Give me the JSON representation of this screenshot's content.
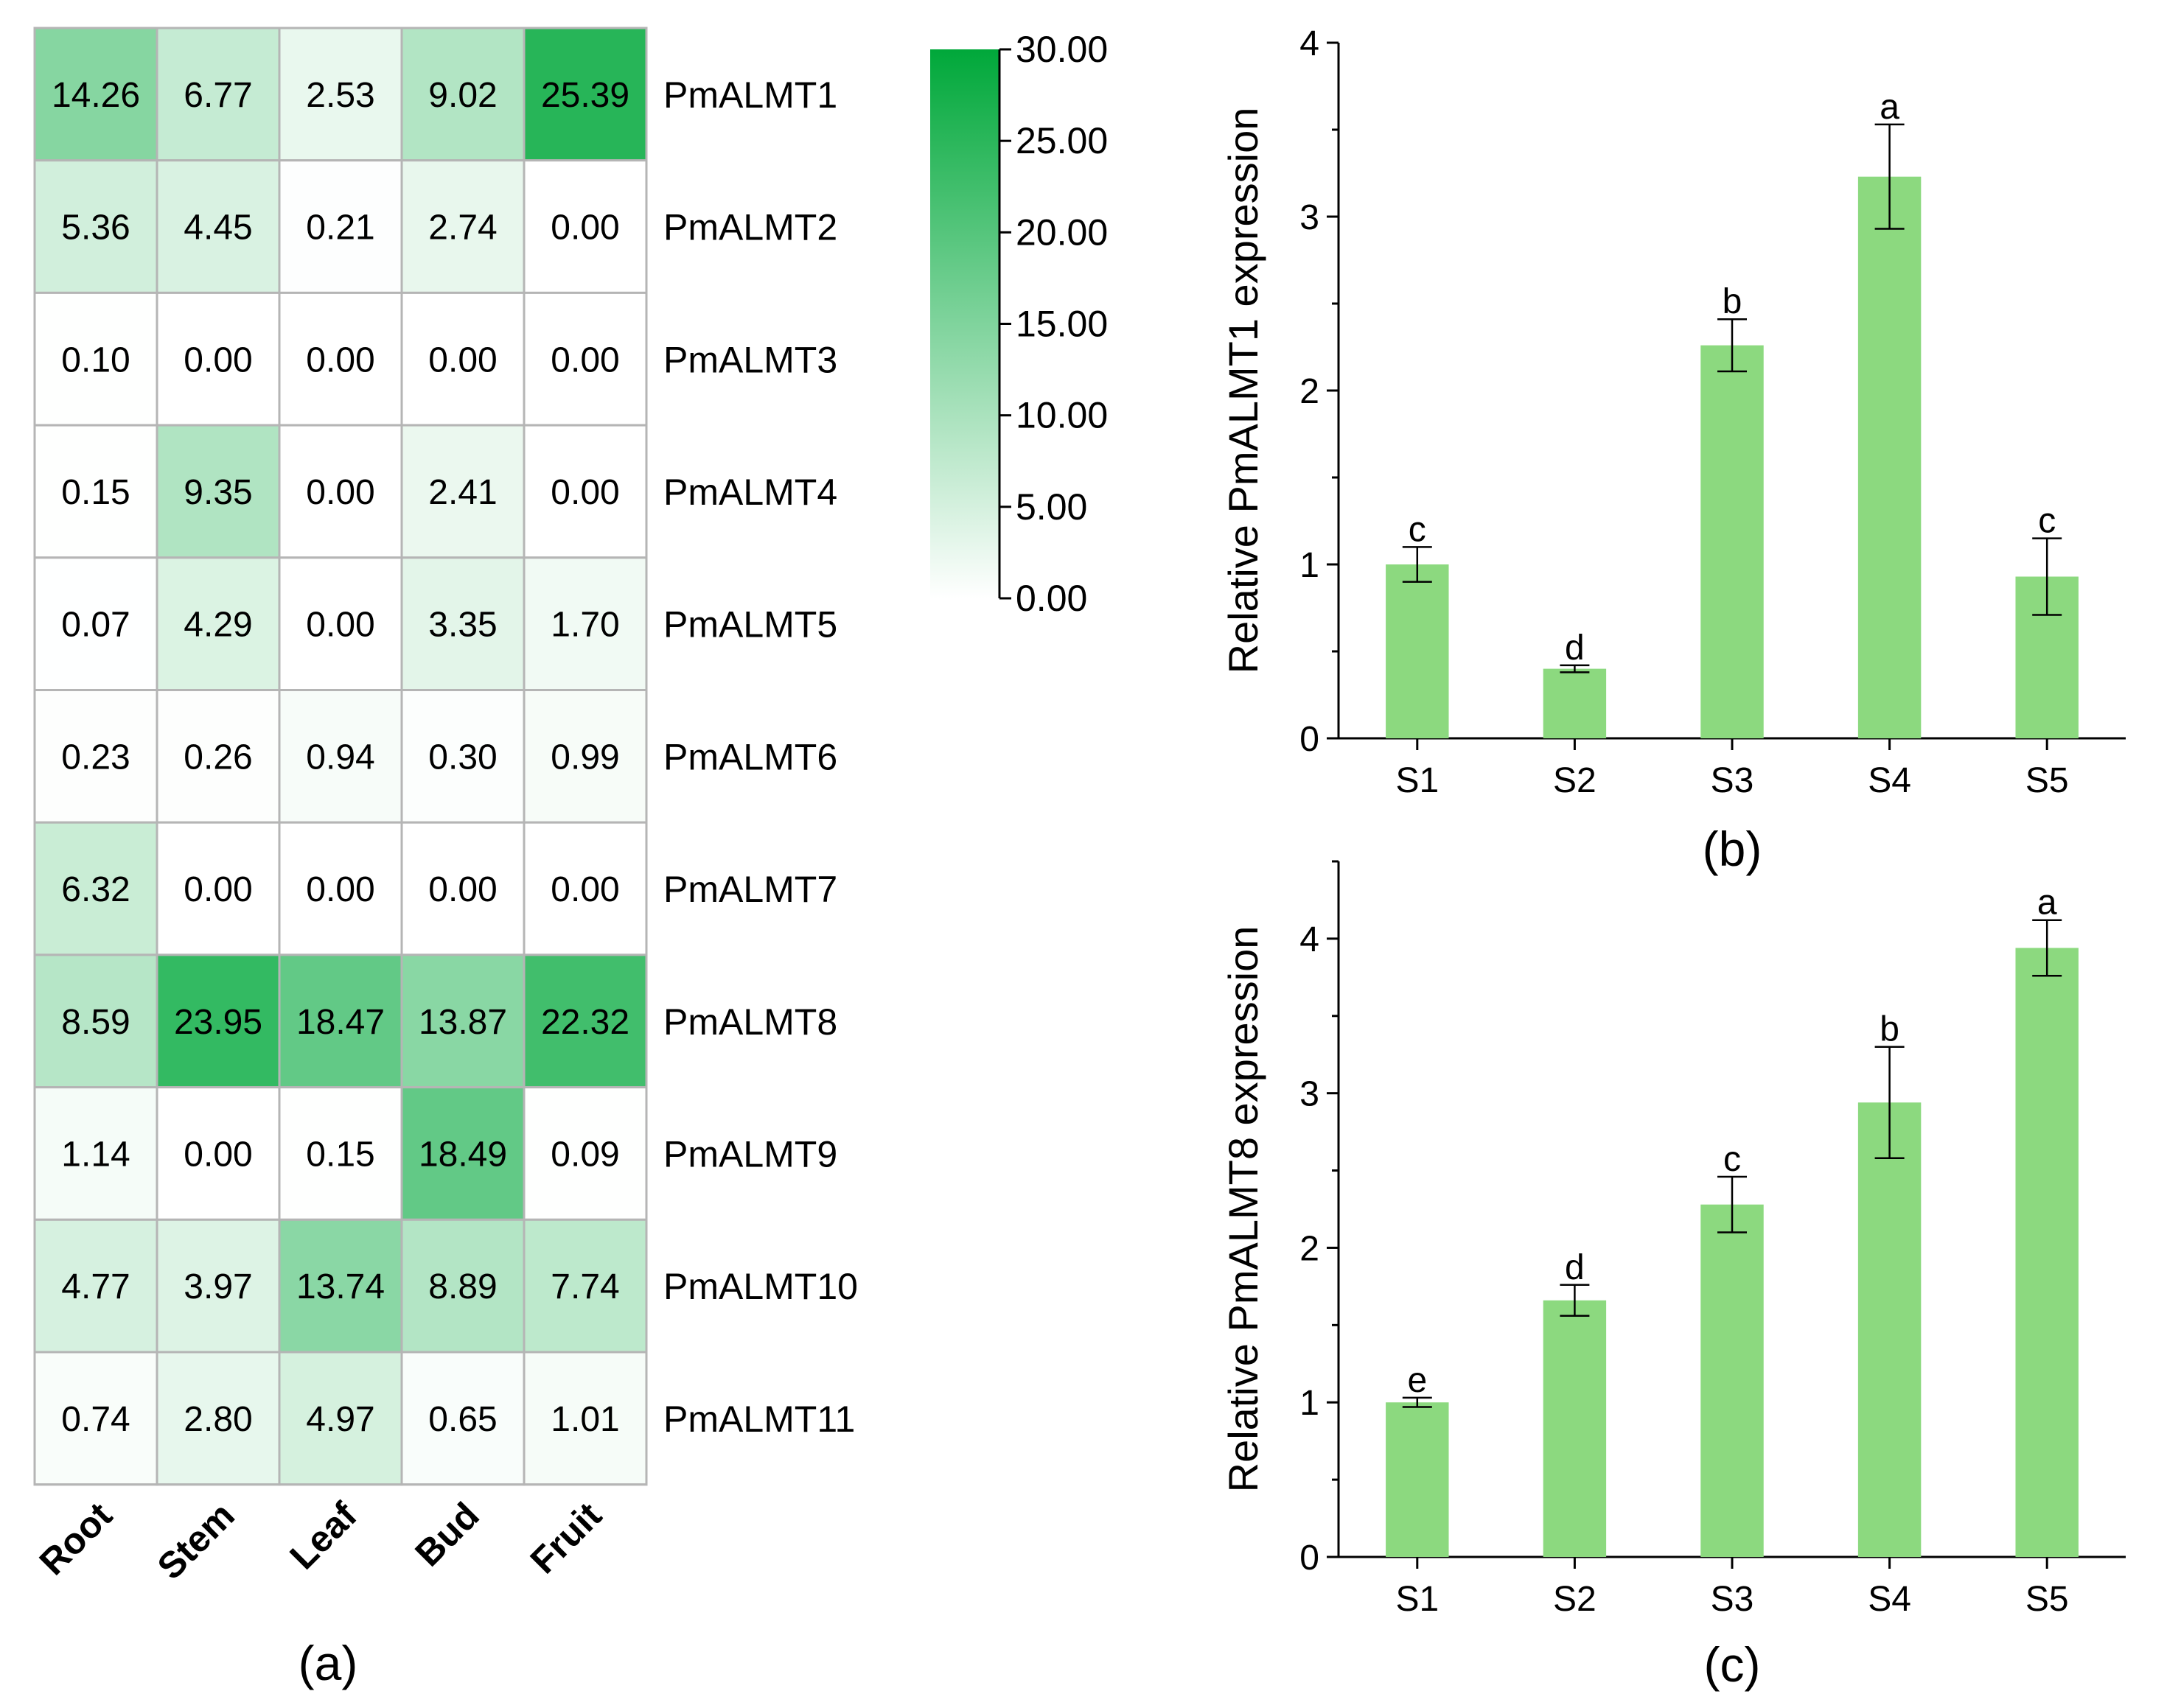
{
  "chart_data": [
    {
      "type": "heatmap",
      "panel_label": "(a)",
      "columns": [
        "Root",
        "Stem",
        "Leaf",
        "Bud",
        "Fruit"
      ],
      "rows": [
        "PmALMT1",
        "PmALMT2",
        "PmALMT3",
        "PmALMT4",
        "PmALMT5",
        "PmALMT6",
        "PmALMT7",
        "PmALMT8",
        "PmALMT9",
        "PmALMT10",
        "PmALMT11"
      ],
      "values": [
        [
          "14.26",
          "6.77",
          "2.53",
          "9.02",
          "25.39"
        ],
        [
          "5.36",
          "4.45",
          "0.21",
          "2.74",
          "0.00"
        ],
        [
          "0.10",
          "0.00",
          "0.00",
          "0.00",
          "0.00"
        ],
        [
          "0.15",
          "9.35",
          "0.00",
          "2.41",
          "0.00"
        ],
        [
          "0.07",
          "4.29",
          "0.00",
          "3.35",
          "1.70"
        ],
        [
          "0.23",
          "0.26",
          "0.94",
          "0.30",
          "0.99"
        ],
        [
          "6.32",
          "0.00",
          "0.00",
          "0.00",
          "0.00"
        ],
        [
          "8.59",
          "23.95",
          "18.47",
          "13.87",
          "22.32"
        ],
        [
          "1.14",
          "0.00",
          "0.15",
          "18.49",
          "0.09"
        ],
        [
          "4.77",
          "3.97",
          "13.74",
          "8.89",
          "7.74"
        ],
        [
          "0.74",
          "2.80",
          "4.97",
          "0.65",
          "1.01"
        ]
      ],
      "colorbar": {
        "range": [
          0,
          30
        ],
        "ticks": [
          "0.00",
          "5.00",
          "10.00",
          "15.00",
          "20.00",
          "25.00",
          "30.00"
        ],
        "low_color": "#ffffff",
        "high_color": "#00a83a"
      }
    },
    {
      "type": "bar",
      "panel_label": "(b)",
      "categories": [
        "S1",
        "S2",
        "S3",
        "S4",
        "S5"
      ],
      "values": [
        1.0,
        0.4,
        2.26,
        3.23,
        0.93
      ],
      "errors": [
        0.1,
        0.02,
        0.15,
        0.3,
        0.22
      ],
      "letters": [
        "c",
        "d",
        "b",
        "a",
        "c"
      ],
      "ylabel": "Relative PmALMT1 expression",
      "ylim": [
        0,
        4
      ],
      "yticks": [
        "0",
        "1",
        "2",
        "3",
        "4"
      ],
      "bar_color": "#8cd97f"
    },
    {
      "type": "bar",
      "panel_label": "(c)",
      "categories": [
        "S1",
        "S2",
        "S3",
        "S4",
        "S5"
      ],
      "values": [
        1.0,
        1.66,
        2.28,
        2.94,
        3.94
      ],
      "errors": [
        0.03,
        0.1,
        0.18,
        0.36,
        0.18
      ],
      "letters": [
        "e",
        "d",
        "c",
        "b",
        "a"
      ],
      "ylabel": "Relative PmALMT8 expression",
      "ylim": [
        0,
        4.5
      ],
      "yticks": [
        "0",
        "1",
        "2",
        "3",
        "4"
      ],
      "bar_color": "#8cd97f"
    }
  ]
}
